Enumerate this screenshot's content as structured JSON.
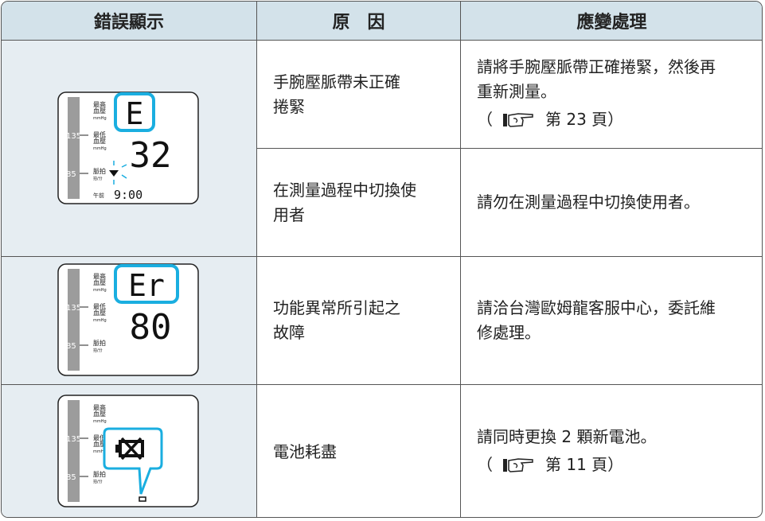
{
  "table": {
    "headers": [
      "錯誤顯示",
      "原　因",
      "應變處理"
    ],
    "rows": [
      {
        "display": {
          "scale": [
            "135",
            "85"
          ],
          "labels": [
            [
              "最高",
              "血壓",
              "mmHg"
            ],
            [
              "最低",
              "血壓",
              "mmHg"
            ],
            [
              "脈拍",
              "拍/分"
            ]
          ],
          "reading": [
            "E",
            "32"
          ],
          "time": [
            "午前",
            "9:00"
          ]
        },
        "items": [
          {
            "cause": [
              "手腕壓脈帶未正確",
              "捲緊"
            ],
            "remedy": [
              "請將手腕壓脈帶正確捲緊，然後再",
              "重新測量。"
            ],
            "page_ref": [
              "（",
              "第 23 頁）"
            ]
          },
          {
            "cause": [
              "在測量過程中切換使",
              "用者"
            ],
            "remedy": [
              "請勿在測量過程中切換使用者。"
            ]
          }
        ]
      },
      {
        "display": {
          "scale": [
            "135",
            "85"
          ],
          "labels": [
            [
              "最高",
              "血壓",
              "mmHg"
            ],
            [
              "最低",
              "血壓",
              "mmHg"
            ],
            [
              "脈拍",
              "拍/分"
            ]
          ],
          "reading": [
            "Er",
            "80"
          ]
        },
        "items": [
          {
            "cause": [
              "功能異常所引起之",
              "故障"
            ],
            "remedy": [
              "請洽台灣歐姆龍客服中心，委託維",
              "修處理。"
            ]
          }
        ]
      },
      {
        "display": {
          "scale": [
            "135",
            "85"
          ],
          "labels": [
            [
              "最高",
              "血壓",
              "mmHg"
            ],
            [
              "最低",
              "血壓",
              "mmHg"
            ],
            [
              "脈拍",
              "拍/分"
            ]
          ]
        },
        "items": [
          {
            "cause": [
              "電池耗盡"
            ],
            "remedy": [
              "請同時更換 2 顆新電池。"
            ],
            "page_ref": [
              "（",
              "第 11 頁）"
            ]
          }
        ]
      }
    ]
  }
}
